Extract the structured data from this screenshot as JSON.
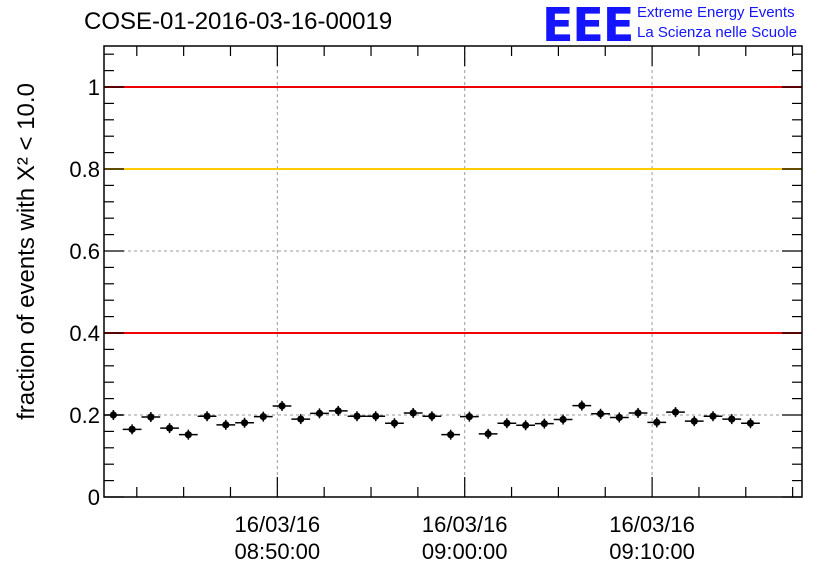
{
  "title": "COSE-01-2016-03-16-00019",
  "logo": {
    "mark": "EEE",
    "line1": "Extreme Energy Events",
    "line2": "La Scienza nelle Scuole",
    "color": "#1414ff"
  },
  "chart_data": {
    "type": "scatter",
    "ylabel": "fraction of events with X² < 10.0",
    "ylim": [
      0,
      1.1
    ],
    "xlim": [
      "16/03/16 08:40:45",
      "16/03/16 09:18:00"
    ],
    "grid": true,
    "x_ticks": [
      {
        "x": "16/03/16 08:50:00",
        "line1": "16/03/16",
        "line2": "08:50:00"
      },
      {
        "x": "16/03/16 09:00:00",
        "line1": "16/03/16",
        "line2": "09:00:00"
      },
      {
        "x": "16/03/16 09:10:00",
        "line1": "16/03/16",
        "line2": "09:10:00"
      }
    ],
    "y_ticks": [
      "0",
      "0.2",
      "0.4",
      "0.6",
      "0.8",
      "1"
    ],
    "threshold_lines": [
      {
        "y": 1.0,
        "color": "#ee0000"
      },
      {
        "y": 0.8,
        "color": "#ffcc00"
      },
      {
        "y": 0.4,
        "color": "#ee0000"
      }
    ],
    "points": [
      {
        "x": "16/03/16 08:41:15",
        "y": 0.2
      },
      {
        "x": "16/03/16 08:42:15",
        "y": 0.165
      },
      {
        "x": "16/03/16 08:43:15",
        "y": 0.195
      },
      {
        "x": "16/03/16 08:44:15",
        "y": 0.168
      },
      {
        "x": "16/03/16 08:45:15",
        "y": 0.152
      },
      {
        "x": "16/03/16 08:46:15",
        "y": 0.197
      },
      {
        "x": "16/03/16 08:47:15",
        "y": 0.176
      },
      {
        "x": "16/03/16 08:48:15",
        "y": 0.181
      },
      {
        "x": "16/03/16 08:49:15",
        "y": 0.196
      },
      {
        "x": "16/03/16 08:50:15",
        "y": 0.222
      },
      {
        "x": "16/03/16 08:51:15",
        "y": 0.19
      },
      {
        "x": "16/03/16 08:52:15",
        "y": 0.204
      },
      {
        "x": "16/03/16 08:53:15",
        "y": 0.21
      },
      {
        "x": "16/03/16 08:54:15",
        "y": 0.197
      },
      {
        "x": "16/03/16 08:55:15",
        "y": 0.197
      },
      {
        "x": "16/03/16 08:56:15",
        "y": 0.18
      },
      {
        "x": "16/03/16 08:57:15",
        "y": 0.205
      },
      {
        "x": "16/03/16 08:58:15",
        "y": 0.197
      },
      {
        "x": "16/03/16 08:59:15",
        "y": 0.152
      },
      {
        "x": "16/03/16 09:00:15",
        "y": 0.196
      },
      {
        "x": "16/03/16 09:01:15",
        "y": 0.154
      },
      {
        "x": "16/03/16 09:02:15",
        "y": 0.18
      },
      {
        "x": "16/03/16 09:03:15",
        "y": 0.175
      },
      {
        "x": "16/03/16 09:04:15",
        "y": 0.179
      },
      {
        "x": "16/03/16 09:05:15",
        "y": 0.189
      },
      {
        "x": "16/03/16 09:06:15",
        "y": 0.223
      },
      {
        "x": "16/03/16 09:07:15",
        "y": 0.203
      },
      {
        "x": "16/03/16 09:08:15",
        "y": 0.194
      },
      {
        "x": "16/03/16 09:09:15",
        "y": 0.205
      },
      {
        "x": "16/03/16 09:10:15",
        "y": 0.182
      },
      {
        "x": "16/03/16 09:11:15",
        "y": 0.207
      },
      {
        "x": "16/03/16 09:12:15",
        "y": 0.185
      },
      {
        "x": "16/03/16 09:13:15",
        "y": 0.197
      },
      {
        "x": "16/03/16 09:14:15",
        "y": 0.19
      },
      {
        "x": "16/03/16 09:15:15",
        "y": 0.18
      }
    ]
  }
}
